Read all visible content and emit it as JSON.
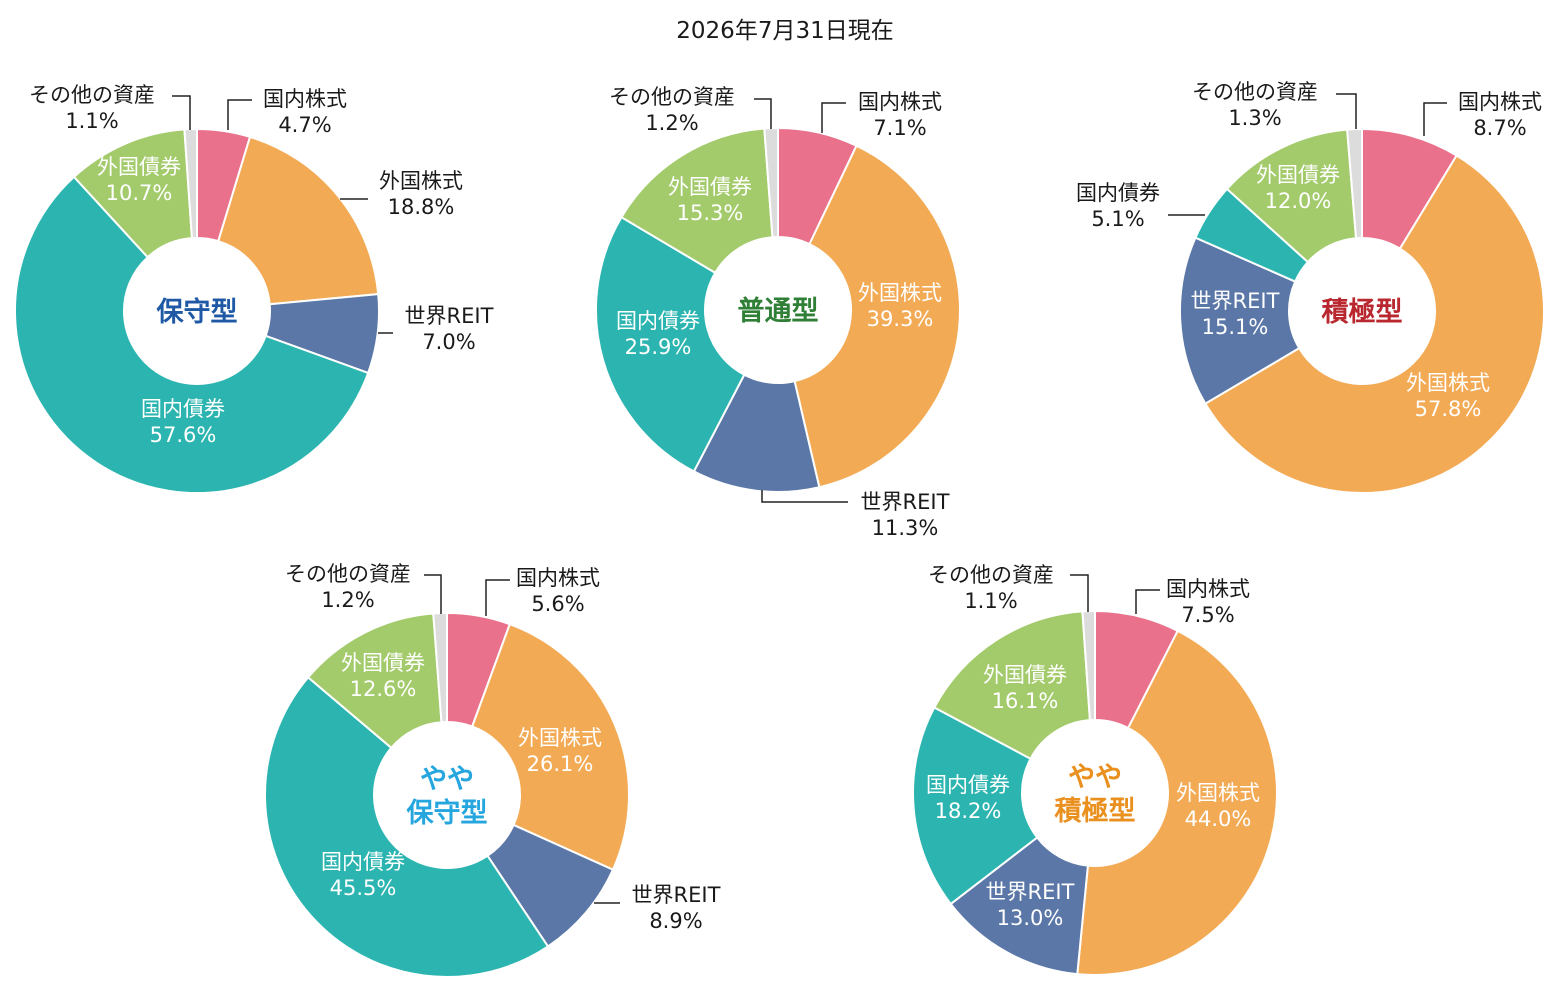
{
  "date_label": "2026年7月31日現在",
  "colors": {
    "国内株式": "#E9718C",
    "外国株式": "#F3AA55",
    "世界REIT": "#5A77A7",
    "国内債券": "#2CB5B0",
    "外国債券": "#A3CB6C",
    "その他の資産": "#DCDCDC"
  },
  "chart_data": [
    {
      "type": "donut",
      "center_label": [
        "保守型"
      ],
      "center_color": "#1F59A6",
      "slices": [
        {
          "label": "国内株式",
          "value": 4.7,
          "value_text": "4.7%",
          "label_pos": "outside"
        },
        {
          "label": "外国株式",
          "value": 18.8,
          "value_text": "18.8%",
          "label_pos": "outside"
        },
        {
          "label": "世界REIT",
          "value": 7.0,
          "value_text": "7.0%",
          "label_pos": "outside"
        },
        {
          "label": "国内債券",
          "value": 57.6,
          "value_text": "57.6%",
          "label_pos": "inside"
        },
        {
          "label": "外国債券",
          "value": 10.7,
          "value_text": "10.7%",
          "label_pos": "inside"
        },
        {
          "label": "その他の資産",
          "value": 1.1,
          "value_text": "1.1%",
          "label_pos": "outside"
        }
      ]
    },
    {
      "type": "donut",
      "center_label": [
        "普通型"
      ],
      "center_color": "#2F7F36",
      "slices": [
        {
          "label": "国内株式",
          "value": 7.1,
          "value_text": "7.1%",
          "label_pos": "outside"
        },
        {
          "label": "外国株式",
          "value": 39.3,
          "value_text": "39.3%",
          "label_pos": "inside"
        },
        {
          "label": "世界REIT",
          "value": 11.3,
          "value_text": "11.3%",
          "label_pos": "outside"
        },
        {
          "label": "国内債券",
          "value": 25.9,
          "value_text": "25.9%",
          "label_pos": "inside"
        },
        {
          "label": "外国債券",
          "value": 15.3,
          "value_text": "15.3%",
          "label_pos": "inside"
        },
        {
          "label": "その他の資産",
          "value": 1.2,
          "value_text": "1.2%",
          "label_pos": "outside"
        }
      ]
    },
    {
      "type": "donut",
      "center_label": [
        "積極型"
      ],
      "center_color": "#B8282E",
      "slices": [
        {
          "label": "国内株式",
          "value": 8.7,
          "value_text": "8.7%",
          "label_pos": "outside"
        },
        {
          "label": "外国株式",
          "value": 57.8,
          "value_text": "57.8%",
          "label_pos": "inside"
        },
        {
          "label": "世界REIT",
          "value": 15.1,
          "value_text": "15.1%",
          "label_pos": "inside"
        },
        {
          "label": "国内債券",
          "value": 5.1,
          "value_text": "5.1%",
          "label_pos": "outside"
        },
        {
          "label": "外国債券",
          "value": 12.0,
          "value_text": "12.0%",
          "label_pos": "inside"
        },
        {
          "label": "その他の資産",
          "value": 1.3,
          "value_text": "1.3%",
          "label_pos": "outside"
        }
      ]
    },
    {
      "type": "donut",
      "center_label": [
        "やや",
        "保守型"
      ],
      "center_color": "#26A6DF",
      "slices": [
        {
          "label": "国内株式",
          "value": 5.6,
          "value_text": "5.6%",
          "label_pos": "outside"
        },
        {
          "label": "外国株式",
          "value": 26.1,
          "value_text": "26.1%",
          "label_pos": "inside"
        },
        {
          "label": "世界REIT",
          "value": 8.9,
          "value_text": "8.9%",
          "label_pos": "outside"
        },
        {
          "label": "国内債券",
          "value": 45.5,
          "value_text": "45.5%",
          "label_pos": "inside"
        },
        {
          "label": "外国債券",
          "value": 12.6,
          "value_text": "12.6%",
          "label_pos": "inside"
        },
        {
          "label": "その他の資産",
          "value": 1.2,
          "value_text": "1.2%",
          "label_pos": "outside"
        }
      ]
    },
    {
      "type": "donut",
      "center_label": [
        "やや",
        "積極型"
      ],
      "center_color": "#E9901E",
      "slices": [
        {
          "label": "国内株式",
          "value": 7.5,
          "value_text": "7.5%",
          "label_pos": "outside"
        },
        {
          "label": "外国株式",
          "value": 44.0,
          "value_text": "44.0%",
          "label_pos": "inside"
        },
        {
          "label": "世界REIT",
          "value": 13.0,
          "value_text": "13.0%",
          "label_pos": "inside"
        },
        {
          "label": "国内債券",
          "value": 18.2,
          "value_text": "18.2%",
          "label_pos": "inside"
        },
        {
          "label": "外国債券",
          "value": 16.1,
          "value_text": "16.1%",
          "label_pos": "inside"
        },
        {
          "label": "その他の資産",
          "value": 1.1,
          "value_text": "1.1%",
          "label_pos": "outside"
        }
      ]
    }
  ]
}
